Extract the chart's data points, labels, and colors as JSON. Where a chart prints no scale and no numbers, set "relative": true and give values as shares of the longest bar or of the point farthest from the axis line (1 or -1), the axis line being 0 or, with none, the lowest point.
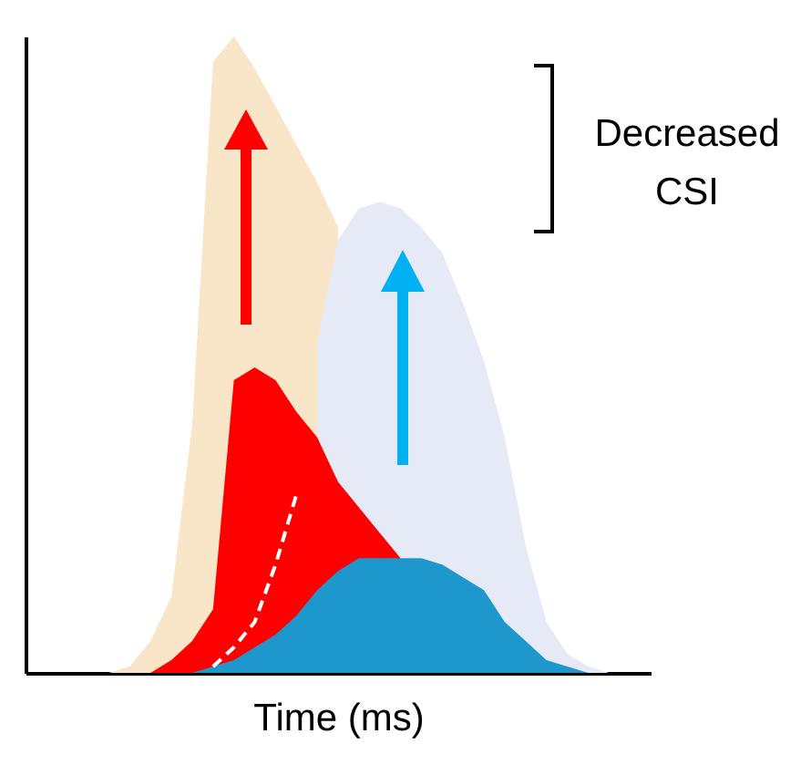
{
  "chart_data": {
    "type": "area",
    "relative": true,
    "xlabel": "Time (ms)",
    "annotations": [
      "Decreased CSI"
    ],
    "line_style": "dashed",
    "categories": [
      null,
      null,
      null,
      null,
      null,
      null,
      null,
      null,
      null,
      null,
      null,
      null,
      null,
      null,
      null,
      null,
      null,
      null,
      null,
      null,
      null,
      null,
      null,
      null,
      null,
      null,
      null,
      null,
      null,
      null,
      null
    ],
    "series": [
      {
        "color": "#f9e5c8",
        "values": [
          null,
          null,
          null,
          null,
          0,
          0.01,
          0.05,
          0.12,
          0.39,
          0.96,
          1,
          0.95,
          0.89,
          0.83,
          0.77,
          0.7,
          null,
          null,
          null,
          null,
          null,
          null,
          null,
          null,
          null,
          null,
          null,
          null,
          null,
          null,
          null
        ]
      },
      {
        "color": "#e6eaf7",
        "values": [
          null,
          null,
          null,
          null,
          null,
          null,
          null,
          null,
          null,
          null,
          null,
          null,
          null,
          null,
          0.52,
          0.68,
          0.73,
          0.74,
          0.73,
          0.7,
          0.66,
          0.58,
          0.49,
          0.37,
          0.2,
          0.08,
          0.03,
          0.01,
          0,
          null,
          null
        ]
      },
      {
        "color": "#ff0000",
        "values": [
          null,
          null,
          null,
          null,
          null,
          null,
          0,
          0.02,
          0.05,
          0.1,
          0.46,
          0.48,
          0.46,
          0.41,
          0.37,
          0.3,
          0.26,
          0.22,
          0.18,
          null,
          null,
          null,
          null,
          null,
          null,
          null,
          null,
          null,
          null,
          null,
          null
        ]
      },
      {
        "color": "#1e98cc",
        "values": [
          null,
          null,
          null,
          null,
          null,
          null,
          null,
          null,
          0,
          0.01,
          0.02,
          0.04,
          0.06,
          0.09,
          0.13,
          0.16,
          0.18,
          0.18,
          0.18,
          0.18,
          0.17,
          0.15,
          0.13,
          0.08,
          0.05,
          0.02,
          0.01,
          0,
          null,
          null,
          null
        ]
      },
      {
        "type": "line",
        "color": "#ffffff",
        "values": [
          null,
          null,
          null,
          null,
          null,
          null,
          null,
          null,
          null,
          0.01,
          0.04,
          0.08,
          0.17,
          0.28,
          null,
          null,
          null,
          null,
          null,
          null,
          null,
          null,
          null,
          null,
          null,
          null,
          null,
          null,
          null,
          null,
          null
        ]
      }
    ]
  }
}
